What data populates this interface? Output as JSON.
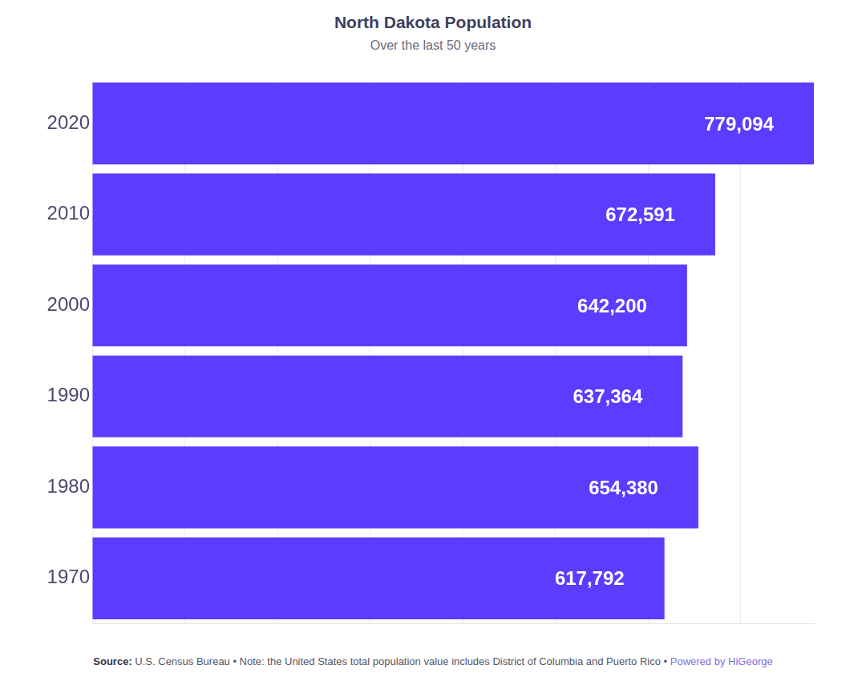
{
  "chart_data": {
    "type": "bar",
    "title": "North Dakota Population",
    "subtitle": "Over the last 50 years",
    "orientation": "horizontal",
    "categories": [
      "2020",
      "2010",
      "2000",
      "1990",
      "1980",
      "1970"
    ],
    "values": [
      779094,
      672591,
      642200,
      637364,
      654380,
      617792
    ],
    "value_labels": [
      "779,094",
      "672,591",
      "642,200",
      "637,364",
      "654,380",
      "617,792"
    ],
    "color": "#5c3cff",
    "xlim": [
      0,
      779094
    ],
    "xticks": [
      0,
      100000,
      200000,
      300000,
      400000,
      500000,
      600000,
      700000
    ],
    "grid": true,
    "data_labels": true,
    "tick_labels": "y"
  },
  "footer": {
    "source_label": "Source:",
    "text": "U.S. Census Bureau • Note: the United States total population value includes District of Columbia and Puerto Rico •",
    "credit": "Powered by HiGeorge"
  }
}
